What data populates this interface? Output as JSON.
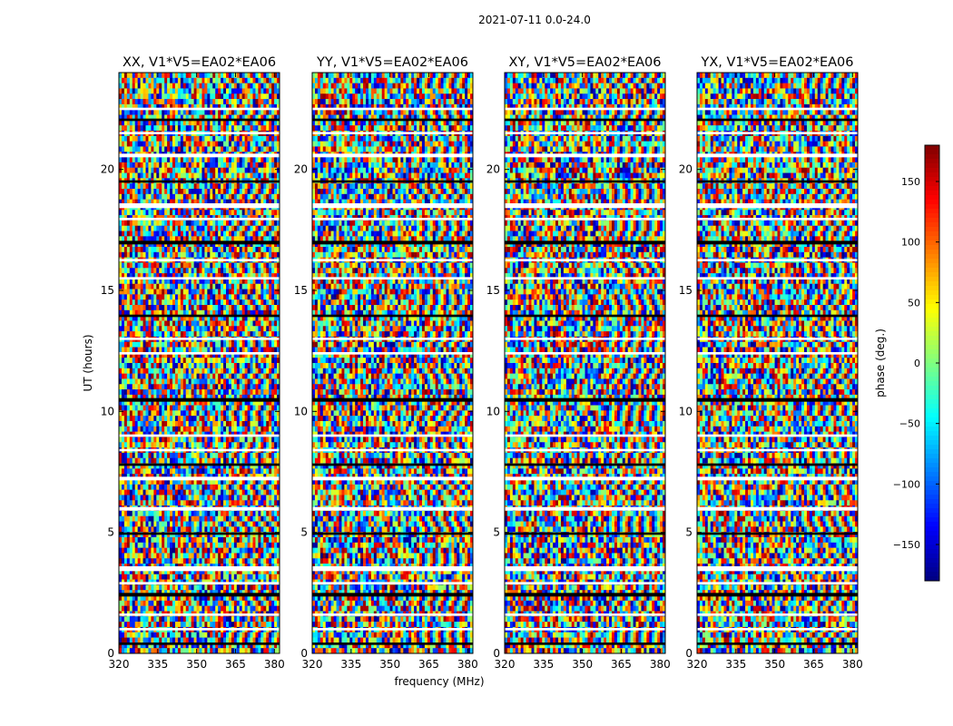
{
  "figure": {
    "suptitle": "2021-07-11 0.0-24.0"
  },
  "chart_data": {
    "type": "heatmap",
    "panels": [
      {
        "title": "XX, V1*V5=EA02*EA06",
        "polarization": "XX"
      },
      {
        "title": "YY, V1*V5=EA02*EA06",
        "polarization": "YY"
      },
      {
        "title": "XY, V1*V5=EA02*EA06",
        "polarization": "XY"
      },
      {
        "title": "YX, V1*V5=EA02*EA06",
        "polarization": "YX"
      }
    ],
    "xlabel": "frequency (MHz)",
    "ylabel": "UT (hours)",
    "xlim": [
      320,
      382
    ],
    "ylim": [
      0,
      24
    ],
    "xticks": [
      "320",
      "335",
      "350",
      "365",
      "380"
    ],
    "xtick_values": [
      320,
      335,
      350,
      365,
      380
    ],
    "yticks": [
      "0",
      "5",
      "10",
      "15",
      "20"
    ],
    "ytick_values": [
      0,
      5,
      10,
      15,
      20
    ],
    "colorbar": {
      "label": "phase (deg.)",
      "range": [
        -180,
        180
      ],
      "ticks": [
        "−150",
        "−100",
        "−50",
        "0",
        "50",
        "100",
        "150"
      ],
      "tick_values": [
        -150,
        -100,
        -50,
        0,
        50,
        100,
        150
      ],
      "colormap": "jet"
    },
    "flagged_ut_bands": [
      [
        0.35,
        0.45
      ],
      [
        0.95,
        1.05
      ],
      [
        1.55,
        1.65
      ],
      [
        2.35,
        2.5
      ],
      [
        2.85,
        2.95
      ],
      [
        3.4,
        3.6
      ],
      [
        4.9,
        5.0
      ],
      [
        5.9,
        6.05
      ],
      [
        7.15,
        7.3
      ],
      [
        7.75,
        7.85
      ],
      [
        8.35,
        8.45
      ],
      [
        8.95,
        9.05
      ],
      [
        10.4,
        10.55
      ],
      [
        12.35,
        12.45
      ],
      [
        12.95,
        13.05
      ],
      [
        13.9,
        14.0
      ],
      [
        15.45,
        15.55
      ],
      [
        16.2,
        16.3
      ],
      [
        16.9,
        17.05
      ],
      [
        17.9,
        18.0
      ],
      [
        18.4,
        18.6
      ],
      [
        19.45,
        19.55
      ],
      [
        20.5,
        20.65
      ],
      [
        21.45,
        21.55
      ],
      [
        22.0,
        22.1
      ],
      [
        22.45,
        22.55
      ]
    ],
    "grid": false
  }
}
